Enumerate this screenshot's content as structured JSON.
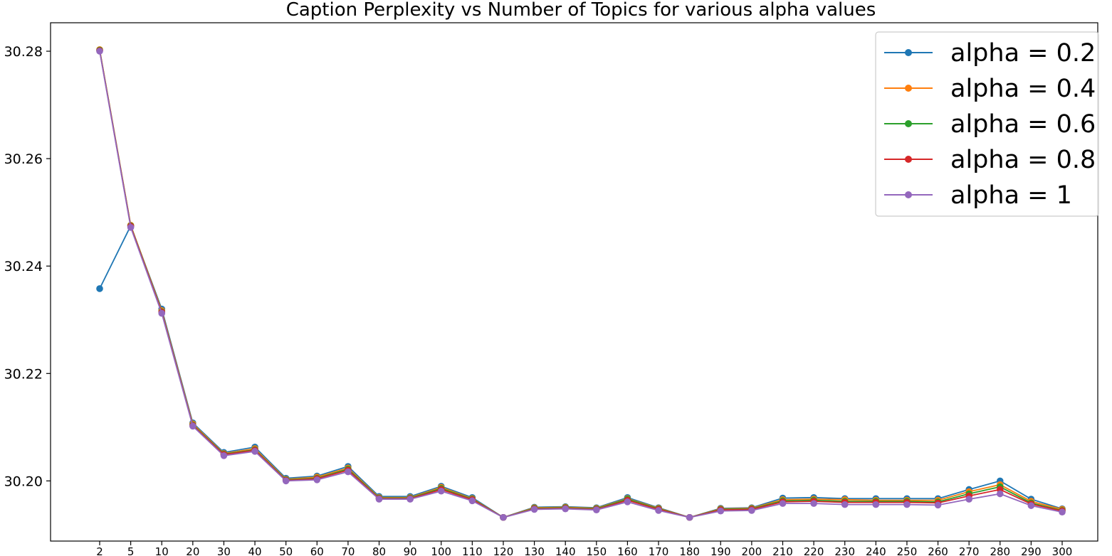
{
  "chart_data": {
    "type": "line",
    "title": "Caption Perplexity vs Number of Topics for various alpha values",
    "xlabel": "",
    "ylabel": "",
    "categories": [
      "2",
      "5",
      "10",
      "20",
      "30",
      "40",
      "50",
      "60",
      "70",
      "80",
      "90",
      "100",
      "110",
      "120",
      "130",
      "140",
      "150",
      "160",
      "170",
      "180",
      "190",
      "200",
      "210",
      "220",
      "230",
      "240",
      "250",
      "260",
      "270",
      "280",
      "290",
      "300"
    ],
    "y_ticks": [
      "30.20",
      "30.22",
      "30.24",
      "30.26",
      "30.28"
    ],
    "ylim": [
      30.1888,
      30.2853
    ],
    "grid": false,
    "legend_position": "top-right",
    "series": [
      {
        "name": "alpha = 0.2",
        "color": "#1f77b4",
        "values": [
          30.2358,
          30.2475,
          30.232,
          30.2108,
          30.2053,
          30.2063,
          30.2005,
          30.2009,
          30.2027,
          30.1971,
          30.1971,
          30.199,
          30.1969,
          30.1932,
          30.1951,
          30.1952,
          30.195,
          30.1969,
          30.195,
          30.1932,
          30.1949,
          30.195,
          30.1968,
          30.1969,
          30.1967,
          30.1967,
          30.1967,
          30.1967,
          30.1984,
          30.2,
          30.1966,
          30.1948
        ]
      },
      {
        "name": "alpha = 0.4",
        "color": "#ff7f0e",
        "values": [
          30.2803,
          30.2476,
          30.2317,
          30.2106,
          30.2051,
          30.206,
          30.2003,
          30.2007,
          30.2024,
          30.1969,
          30.1969,
          30.1988,
          30.1967,
          30.1932,
          30.195,
          30.1951,
          30.1949,
          30.1967,
          30.1949,
          30.1932,
          30.1948,
          30.1949,
          30.1965,
          30.1966,
          30.1965,
          30.1964,
          30.1964,
          30.1964,
          30.198,
          30.1993,
          30.1962,
          30.1947
        ]
      },
      {
        "name": "alpha = 0.6",
        "color": "#2ca02c",
        "values": [
          30.2802,
          30.2475,
          30.2315,
          30.2104,
          30.205,
          30.2058,
          30.2002,
          30.2005,
          30.2022,
          30.1968,
          30.1968,
          30.1986,
          30.1966,
          30.1932,
          30.1949,
          30.195,
          30.1948,
          30.1966,
          30.1948,
          30.1932,
          30.1947,
          30.1948,
          30.1963,
          30.1964,
          30.1962,
          30.1962,
          30.1962,
          30.1961,
          30.1976,
          30.1989,
          30.1959,
          30.1945
        ]
      },
      {
        "name": "alpha = 0.8",
        "color": "#d62728",
        "values": [
          30.2801,
          30.2474,
          30.2314,
          30.2103,
          30.2049,
          30.2057,
          30.2001,
          30.2004,
          30.202,
          30.1967,
          30.1967,
          30.1984,
          30.1965,
          30.1932,
          30.1948,
          30.1949,
          30.1947,
          30.1964,
          30.1947,
          30.1932,
          30.1946,
          30.1947,
          30.1961,
          30.1962,
          30.196,
          30.196,
          30.196,
          30.1959,
          30.1972,
          30.1984,
          30.1957,
          30.1944
        ]
      },
      {
        "name": "alpha = 1",
        "color": "#9467bd",
        "values": [
          30.28,
          30.2472,
          30.2312,
          30.2102,
          30.2047,
          30.2055,
          30.2,
          30.2002,
          30.2017,
          30.1966,
          30.1966,
          30.1981,
          30.1963,
          30.1932,
          30.1947,
          30.1948,
          30.1946,
          30.1961,
          30.1945,
          30.1932,
          30.1944,
          30.1945,
          30.1958,
          30.1958,
          30.1956,
          30.1956,
          30.1956,
          30.1955,
          30.1966,
          30.1976,
          30.1954,
          30.1942
        ]
      }
    ]
  }
}
